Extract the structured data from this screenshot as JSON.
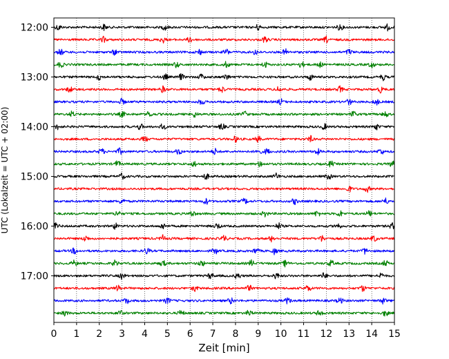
{
  "chart_data": {
    "type": "line",
    "title": "",
    "xlabel": "Zeit  [min]",
    "ylabel": "UTC (Lokalzeit = UTC + 02:00)",
    "xlim": [
      0,
      15
    ],
    "x_ticks": [
      "0",
      "1",
      "2",
      "3",
      "4",
      "5",
      "6",
      "7",
      "8",
      "9",
      "10",
      "11",
      "12",
      "13",
      "14",
      "15"
    ],
    "y_ticks": [
      "12:00",
      "13:00",
      "14:00",
      "15:00",
      "16:00",
      "17:00"
    ],
    "trace_interval_min": 15,
    "colors": [
      "#000000",
      "#ff0000",
      "#0000ff",
      "#008000"
    ],
    "series": [
      {
        "start": "12:00",
        "color": "#000000",
        "bursts": [
          0.2,
          2.2,
          4.9,
          9.0,
          12.6,
          14.7
        ]
      },
      {
        "start": "12:15",
        "color": "#ff0000",
        "bursts": [
          2.2,
          4.8,
          6.0,
          9.3,
          12.0
        ]
      },
      {
        "start": "12:30",
        "color": "#0000ff",
        "bursts": [
          0.3,
          2.7,
          6.4,
          7.6,
          8.9,
          10.2,
          13.0
        ]
      },
      {
        "start": "12:45",
        "color": "#008000",
        "bursts": [
          0.3,
          5.4,
          7.6,
          9.3,
          10.9,
          11.7,
          14.0
        ]
      },
      {
        "start": "13:00",
        "color": "#000000",
        "bursts": [
          2.0,
          4.9,
          5.6,
          6.5,
          7.6,
          11.3,
          14.5
        ]
      },
      {
        "start": "13:15",
        "color": "#ff0000",
        "bursts": [
          0.7,
          4.8,
          7.4,
          9.9,
          12.6,
          14.4
        ]
      },
      {
        "start": "13:30",
        "color": "#0000ff",
        "bursts": [
          3.0,
          6.5,
          10.0,
          13.0,
          14.2
        ]
      },
      {
        "start": "13:45",
        "color": "#008000",
        "bursts": [
          0.8,
          3.0,
          4.2,
          6.2,
          8.4,
          13.2,
          14.6
        ]
      },
      {
        "start": "14:00",
        "color": "#000000",
        "bursts": [
          0.2,
          3.8,
          4.8,
          7.4,
          11.9,
          14.2
        ]
      },
      {
        "start": "14:15",
        "color": "#ff0000",
        "bursts": [
          4.0,
          8.0,
          9.0,
          11.3
        ]
      },
      {
        "start": "14:30",
        "color": "#0000ff",
        "bursts": [
          2.1,
          2.9,
          5.5,
          7.1,
          9.0,
          9.4,
          11.6,
          14.4
        ]
      },
      {
        "start": "14:45",
        "color": "#008000",
        "bursts": [
          2.8,
          6.2,
          9.1,
          12.2,
          14.9
        ]
      },
      {
        "start": "15:00",
        "color": "#000000",
        "bursts": [
          3.0,
          6.7,
          9.8,
          12.1
        ]
      },
      {
        "start": "15:15",
        "color": "#ff0000",
        "bursts": [
          13.0,
          13.8
        ]
      },
      {
        "start": "15:30",
        "color": "#0000ff",
        "bursts": [
          3.0,
          6.7,
          8.4,
          10.6,
          14.6
        ]
      },
      {
        "start": "15:45",
        "color": "#008000",
        "bursts": [
          2.8,
          6.1,
          9.3,
          11.6,
          12.6,
          13.9
        ]
      },
      {
        "start": "16:00",
        "color": "#000000",
        "bursts": [
          0.1,
          2.7,
          4.8,
          7.2,
          9.9,
          12.5,
          14.9
        ]
      },
      {
        "start": "16:15",
        "color": "#ff0000",
        "bursts": [
          1.4,
          4.8,
          7.5,
          9.6,
          11.8,
          14.1
        ]
      },
      {
        "start": "16:30",
        "color": "#0000ff",
        "bursts": [
          0.9,
          4.1,
          7.1,
          8.9,
          9.7,
          13.7
        ]
      },
      {
        "start": "16:45",
        "color": "#008000",
        "bursts": [
          0.9,
          2.7,
          4.8,
          6.5,
          8.7,
          10.2,
          12.2,
          14.6
        ]
      },
      {
        "start": "17:00",
        "color": "#000000",
        "bursts": [
          3.0,
          6.9,
          8.1,
          9.8,
          11.9,
          14.4
        ]
      },
      {
        "start": "17:15",
        "color": "#ff0000",
        "bursts": [
          2.8,
          6.2,
          8.6,
          11.2,
          13.6
        ]
      },
      {
        "start": "17:30",
        "color": "#0000ff",
        "bursts": [
          3.2,
          5.0,
          7.8,
          10.3,
          12.6,
          14.5
        ]
      },
      {
        "start": "17:45",
        "color": "#008000",
        "bursts": [
          0.5,
          2.9,
          5.6,
          8.6,
          11.7,
          14.6
        ]
      }
    ]
  }
}
